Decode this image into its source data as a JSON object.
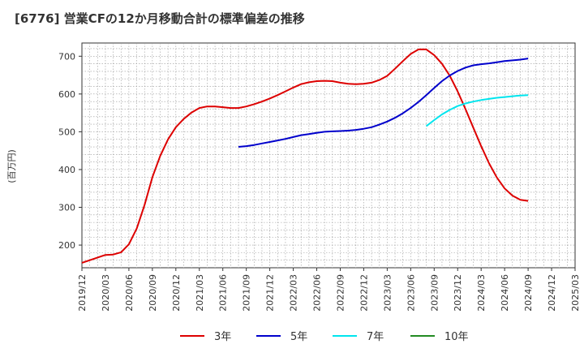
{
  "chart_data": {
    "type": "line",
    "title": "[6776]  営業CFの12か月移動合計の標準偏差の推移",
    "ylabel": "(百万円)",
    "xlabel": "",
    "ylim": [
      140,
      735
    ],
    "yticks": [
      200,
      300,
      400,
      500,
      600,
      700
    ],
    "xlim": [
      "2019/12",
      "2025/03"
    ],
    "xticks": [
      "2019/12",
      "2020/03",
      "2020/06",
      "2020/09",
      "2020/12",
      "2021/03",
      "2021/06",
      "2021/09",
      "2021/12",
      "2022/03",
      "2022/06",
      "2022/09",
      "2022/12",
      "2023/03",
      "2023/06",
      "2023/09",
      "2023/12",
      "2024/03",
      "2024/06",
      "2024/09",
      "2024/12",
      "2025/03"
    ],
    "grid": true,
    "legend_position": "bottom",
    "series": [
      {
        "name": "3年",
        "color": "#dd0000",
        "points": [
          [
            "2019/12",
            153
          ],
          [
            "2020/01",
            160
          ],
          [
            "2020/02",
            167
          ],
          [
            "2020/03",
            174
          ],
          [
            "2020/04",
            175
          ],
          [
            "2020/05",
            181
          ],
          [
            "2020/06",
            202
          ],
          [
            "2020/07",
            244
          ],
          [
            "2020/08",
            306
          ],
          [
            "2020/09",
            380
          ],
          [
            "2020/10",
            436
          ],
          [
            "2020/11",
            480
          ],
          [
            "2020/12",
            512
          ],
          [
            "2021/01",
            534
          ],
          [
            "2021/02",
            551
          ],
          [
            "2021/03",
            563
          ],
          [
            "2021/04",
            567
          ],
          [
            "2021/05",
            567
          ],
          [
            "2021/06",
            565
          ],
          [
            "2021/07",
            563
          ],
          [
            "2021/08",
            563
          ],
          [
            "2021/09",
            567
          ],
          [
            "2021/10",
            573
          ],
          [
            "2021/11",
            580
          ],
          [
            "2021/12",
            588
          ],
          [
            "2022/01",
            597
          ],
          [
            "2022/02",
            607
          ],
          [
            "2022/03",
            617
          ],
          [
            "2022/04",
            626
          ],
          [
            "2022/05",
            631
          ],
          [
            "2022/06",
            634
          ],
          [
            "2022/07",
            635
          ],
          [
            "2022/08",
            634
          ],
          [
            "2022/09",
            630
          ],
          [
            "2022/10",
            627
          ],
          [
            "2022/11",
            626
          ],
          [
            "2022/12",
            627
          ],
          [
            "2023/01",
            630
          ],
          [
            "2023/02",
            637
          ],
          [
            "2023/03",
            648
          ],
          [
            "2023/04",
            667
          ],
          [
            "2023/05",
            687
          ],
          [
            "2023/06",
            706
          ],
          [
            "2023/07",
            718
          ],
          [
            "2023/08",
            718
          ],
          [
            "2023/09",
            703
          ],
          [
            "2023/10",
            680
          ],
          [
            "2023/11",
            648
          ],
          [
            "2023/12",
            607
          ],
          [
            "2024/01",
            560
          ],
          [
            "2024/02",
            511
          ],
          [
            "2024/03",
            462
          ],
          [
            "2024/04",
            417
          ],
          [
            "2024/05",
            379
          ],
          [
            "2024/06",
            350
          ],
          [
            "2024/07",
            331
          ],
          [
            "2024/08",
            320
          ],
          [
            "2024/09",
            317
          ]
        ]
      },
      {
        "name": "5年",
        "color": "#0000cc",
        "points": [
          [
            "2021/08",
            460
          ],
          [
            "2021/09",
            462
          ],
          [
            "2021/10",
            465
          ],
          [
            "2021/11",
            469
          ],
          [
            "2021/12",
            473
          ],
          [
            "2022/01",
            477
          ],
          [
            "2022/02",
            481
          ],
          [
            "2022/03",
            486
          ],
          [
            "2022/04",
            491
          ],
          [
            "2022/05",
            494
          ],
          [
            "2022/06",
            497
          ],
          [
            "2022/07",
            500
          ],
          [
            "2022/08",
            501
          ],
          [
            "2022/09",
            502
          ],
          [
            "2022/10",
            503
          ],
          [
            "2022/11",
            505
          ],
          [
            "2022/12",
            508
          ],
          [
            "2023/01",
            512
          ],
          [
            "2023/02",
            519
          ],
          [
            "2023/03",
            527
          ],
          [
            "2023/04",
            537
          ],
          [
            "2023/05",
            549
          ],
          [
            "2023/06",
            563
          ],
          [
            "2023/07",
            579
          ],
          [
            "2023/08",
            597
          ],
          [
            "2023/09",
            616
          ],
          [
            "2023/10",
            634
          ],
          [
            "2023/11",
            649
          ],
          [
            "2023/12",
            661
          ],
          [
            "2024/01",
            670
          ],
          [
            "2024/02",
            676
          ],
          [
            "2024/03",
            679
          ],
          [
            "2024/04",
            681
          ],
          [
            "2024/05",
            684
          ],
          [
            "2024/06",
            687
          ],
          [
            "2024/07",
            689
          ],
          [
            "2024/08",
            691
          ],
          [
            "2024/09",
            694
          ]
        ]
      },
      {
        "name": "7年",
        "color": "#00e5ee",
        "points": [
          [
            "2023/08",
            515
          ],
          [
            "2023/09",
            531
          ],
          [
            "2023/10",
            546
          ],
          [
            "2023/11",
            558
          ],
          [
            "2023/12",
            568
          ],
          [
            "2024/01",
            575
          ],
          [
            "2024/02",
            580
          ],
          [
            "2024/03",
            584
          ],
          [
            "2024/04",
            587
          ],
          [
            "2024/05",
            590
          ],
          [
            "2024/06",
            592
          ],
          [
            "2024/07",
            594
          ],
          [
            "2024/08",
            596
          ],
          [
            "2024/09",
            597
          ]
        ]
      },
      {
        "name": "10年",
        "color": "#228b22",
        "points": []
      }
    ]
  }
}
